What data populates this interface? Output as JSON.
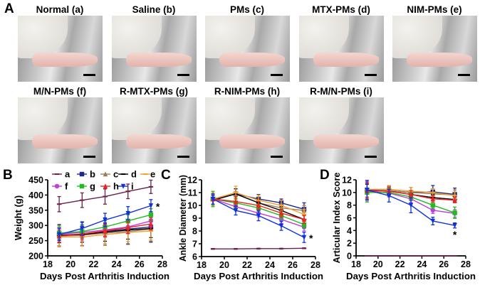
{
  "panel_A": {
    "letter": "A",
    "photos": [
      {
        "label": "Normal (a)"
      },
      {
        "label": "Saline (b)"
      },
      {
        "label": "PMs (c)"
      },
      {
        "label": "MTX-PMs (d)"
      },
      {
        "label": "NIM-PMs (e)"
      },
      {
        "label": "M/N-PMs (f)"
      },
      {
        "label": "R-MTX-PMs (g)"
      },
      {
        "label": "R-NIM-PMs (h)"
      },
      {
        "label": "R-M/N-PMs (i)"
      }
    ]
  },
  "chart_data": [
    {
      "panel": "B",
      "type": "line",
      "xlabel": "Days Post Arthritis Induction",
      "ylabel": "Weight (g)",
      "xlim": [
        18,
        28
      ],
      "ylim": [
        200,
        450
      ],
      "xticks": [
        18,
        20,
        22,
        24,
        26,
        28
      ],
      "yticks": [
        200,
        250,
        300,
        350,
        400,
        450
      ],
      "x": [
        19,
        21,
        23,
        25,
        27
      ],
      "legend": "top",
      "annotation": "*",
      "series": [
        {
          "name": "a",
          "color": "#6b1f4a",
          "marker": "bar",
          "values": [
            370,
            383,
            395,
            412,
            427
          ],
          "err": [
            25,
            24,
            25,
            24,
            22
          ]
        },
        {
          "name": "b",
          "color": "#1c2a8a",
          "marker": "square",
          "values": [
            268,
            272,
            280,
            288,
            295
          ],
          "err": [
            35,
            38,
            45,
            50,
            50
          ]
        },
        {
          "name": "c",
          "color": "#9c7c58",
          "marker": "triangle",
          "values": [
            265,
            268,
            275,
            280,
            288
          ],
          "err": [
            35,
            35,
            40,
            40,
            40
          ]
        },
        {
          "name": "d",
          "color": "#000000",
          "marker": "bar",
          "values": [
            268,
            270,
            278,
            285,
            290
          ],
          "err": [
            25,
            25,
            30,
            30,
            30
          ]
        },
        {
          "name": "e",
          "color": "#f0a030",
          "marker": "bar",
          "values": [
            262,
            262,
            270,
            277,
            282
          ],
          "err": [
            30,
            30,
            30,
            30,
            30
          ]
        },
        {
          "name": "f",
          "color": "#c23ce0",
          "marker": "circle",
          "values": [
            272,
            277,
            285,
            295,
            315
          ],
          "err": [
            20,
            20,
            20,
            20,
            20
          ]
        },
        {
          "name": "g",
          "color": "#22bb22",
          "marker": "square",
          "values": [
            275,
            280,
            295,
            315,
            335
          ],
          "err": [
            20,
            20,
            20,
            20,
            20
          ]
        },
        {
          "name": "h",
          "color": "#ee2222",
          "marker": "triangle",
          "values": [
            265,
            272,
            282,
            293,
            305
          ],
          "err": [
            20,
            20,
            20,
            20,
            20
          ]
        },
        {
          "name": "i",
          "color": "#1030e0",
          "marker": "triangle-down",
          "values": [
            270,
            290,
            318,
            340,
            365
          ],
          "err": [
            20,
            22,
            22,
            22,
            20
          ]
        }
      ]
    },
    {
      "panel": "C",
      "type": "line",
      "xlabel": "Days Post Arthritis Induction",
      "ylabel": "Ankle Diameter (mm)",
      "xlim": [
        18,
        28
      ],
      "ylim": [
        6,
        12
      ],
      "xticks": [
        18,
        20,
        22,
        24,
        26,
        28
      ],
      "yticks": [
        6,
        7,
        8,
        9,
        10,
        11,
        12
      ],
      "x": [
        19,
        21,
        23,
        25,
        27
      ],
      "annotation": "*",
      "series": [
        {
          "name": "a",
          "color": "#6b1f4a",
          "marker": "bar",
          "values": [
            6.6,
            6.6,
            6.62,
            6.62,
            6.65
          ],
          "err": [
            0.03,
            0.03,
            0.03,
            0.03,
            0.03
          ]
        },
        {
          "name": "b",
          "color": "#1c2a8a",
          "marker": "square",
          "values": [
            10.5,
            10.9,
            10.5,
            10.2,
            9.7
          ],
          "err": [
            0.4,
            0.4,
            0.35,
            0.3,
            0.5
          ]
        },
        {
          "name": "c",
          "color": "#9c7c58",
          "marker": "triangle",
          "values": [
            10.5,
            10.9,
            10.2,
            9.8,
            9.6
          ],
          "err": [
            0.4,
            0.4,
            0.35,
            0.3,
            0.4
          ]
        },
        {
          "name": "d",
          "color": "#000000",
          "marker": "bar",
          "values": [
            10.4,
            10.9,
            10.2,
            9.6,
            8.9
          ],
          "err": [
            0.4,
            0.4,
            0.3,
            0.3,
            0.3
          ]
        },
        {
          "name": "e",
          "color": "#f0a030",
          "marker": "bar",
          "values": [
            10.5,
            11.0,
            10.4,
            10.0,
            9.3
          ],
          "err": [
            0.5,
            0.5,
            0.4,
            0.4,
            0.4
          ]
        },
        {
          "name": "f",
          "color": "#c23ce0",
          "marker": "circle",
          "values": [
            10.5,
            9.9,
            9.4,
            8.9,
            8.3
          ],
          "err": [
            0.4,
            0.3,
            0.3,
            0.3,
            0.3
          ]
        },
        {
          "name": "g",
          "color": "#22bb22",
          "marker": "square",
          "values": [
            10.5,
            10.2,
            9.8,
            9.2,
            8.5
          ],
          "err": [
            0.6,
            0.4,
            0.3,
            0.3,
            0.3
          ]
        },
        {
          "name": "h",
          "color": "#ee2222",
          "marker": "triangle",
          "values": [
            10.5,
            10.3,
            10.0,
            9.4,
            8.9
          ],
          "err": [
            0.4,
            0.4,
            0.3,
            0.3,
            0.3
          ]
        },
        {
          "name": "i",
          "color": "#1030e0",
          "marker": "triangle-down",
          "values": [
            10.5,
            9.6,
            9.2,
            8.4,
            7.5
          ],
          "err": [
            0.4,
            0.35,
            0.4,
            0.35,
            0.4
          ]
        }
      ]
    },
    {
      "panel": "D",
      "type": "line",
      "xlabel": "Days Post Arthritis Induction",
      "ylabel": "Articular Index Score",
      "xlim": [
        18,
        28
      ],
      "ylim": [
        0,
        12
      ],
      "xticks": [
        18,
        20,
        22,
        24,
        26,
        28
      ],
      "yticks": [
        0,
        2,
        4,
        6,
        8,
        10,
        12
      ],
      "x": [
        19,
        21,
        23,
        25,
        27
      ],
      "annotation": "*",
      "series": [
        {
          "name": "a",
          "color": "#6b1f4a",
          "marker": "bar",
          "values": [
            0,
            0,
            0,
            0,
            0
          ],
          "err": [
            0,
            0,
            0,
            0,
            0
          ]
        },
        {
          "name": "b",
          "color": "#1c2a8a",
          "marker": "square",
          "values": [
            10.4,
            10.3,
            10.0,
            10.1,
            9.7
          ],
          "err": [
            1.5,
            0.7,
            0.8,
            1.0,
            1.0
          ]
        },
        {
          "name": "c",
          "color": "#9c7c58",
          "marker": "triangle",
          "values": [
            10.3,
            10.3,
            10.0,
            9.8,
            9.6
          ],
          "err": [
            1.2,
            0.6,
            0.8,
            0.8,
            0.8
          ]
        },
        {
          "name": "d",
          "color": "#000000",
          "marker": "bar",
          "values": [
            10.3,
            10.2,
            9.7,
            9.2,
            8.9
          ],
          "err": [
            1.0,
            0.6,
            0.6,
            0.5,
            0.5
          ]
        },
        {
          "name": "e",
          "color": "#f0a030",
          "marker": "bar",
          "values": [
            10.5,
            10.5,
            10.2,
            10.0,
            9.5
          ],
          "err": [
            1.2,
            0.6,
            0.6,
            0.6,
            0.6
          ]
        },
        {
          "name": "f",
          "color": "#c23ce0",
          "marker": "circle",
          "values": [
            10.2,
            9.9,
            9.0,
            7.2,
            6.7
          ],
          "err": [
            1.5,
            0.6,
            0.6,
            0.5,
            0.6
          ]
        },
        {
          "name": "g",
          "color": "#22bb22",
          "marker": "square",
          "values": [
            10.0,
            10.0,
            9.3,
            8.0,
            6.8
          ],
          "err": [
            1.5,
            0.6,
            0.6,
            0.5,
            0.9
          ]
        },
        {
          "name": "h",
          "color": "#ee2222",
          "marker": "triangle",
          "values": [
            10.3,
            10.2,
            9.7,
            9.0,
            8.8
          ],
          "err": [
            1.2,
            0.6,
            0.6,
            0.5,
            0.4
          ]
        },
        {
          "name": "i",
          "color": "#1030e0",
          "marker": "triangle-down",
          "values": [
            10.4,
            9.5,
            8.0,
            5.5,
            4.8
          ],
          "err": [
            1.5,
            1.0,
            1.2,
            0.6,
            0.4
          ]
        }
      ]
    }
  ]
}
